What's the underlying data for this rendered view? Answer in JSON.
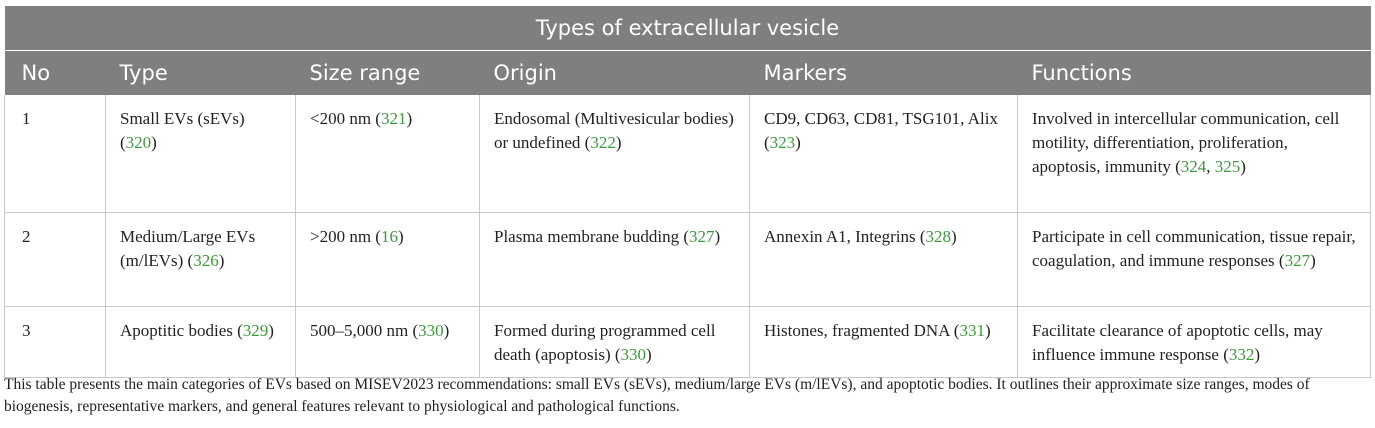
{
  "table": {
    "caption": "Types of extracellular vesicle",
    "headers": [
      "No",
      "Type",
      "Size range",
      "Origin",
      "Markers",
      "Functions"
    ],
    "rows": [
      {
        "no": "1",
        "type": {
          "text": "Small EVs (sEVs) (",
          "refs": [
            "320"
          ],
          "end": ")"
        },
        "size": {
          "text": "<200 nm (",
          "refs": [
            "321"
          ],
          "end": ")"
        },
        "origin": {
          "text": "Endosomal (Multivesicular bodies) or undefined (",
          "refs": [
            "322"
          ],
          "end": ")"
        },
        "markers": {
          "text": "CD9, CD63, CD81, TSG101, Alix (",
          "refs": [
            "323"
          ],
          "end": ")"
        },
        "functions": {
          "text": "Involved in intercellular communication, cell motility, differentiation, proliferation, apoptosis, immunity (",
          "refs": [
            "324",
            "325"
          ],
          "end": ")"
        }
      },
      {
        "no": "2",
        "type": {
          "text": "Medium/Large EVs (m/lEVs) (",
          "refs": [
            "326"
          ],
          "end": ")"
        },
        "size": {
          "text": ">200 nm (",
          "refs": [
            "16"
          ],
          "end": ")"
        },
        "origin": {
          "text": "Plasma membrane budding (",
          "refs": [
            "327"
          ],
          "end": ")"
        },
        "markers": {
          "text": "Annexin A1, Integrins (",
          "refs": [
            "328"
          ],
          "end": ")"
        },
        "functions": {
          "text": "Participate in cell communication, tissue repair, coagulation, and immune responses (",
          "refs": [
            "327"
          ],
          "end": ")"
        }
      },
      {
        "no": "3",
        "type": {
          "text": "Apoptitic bodies (",
          "refs": [
            "329"
          ],
          "end": ")"
        },
        "size": {
          "text": "500–5,000 nm (",
          "refs": [
            "330"
          ],
          "end": ")"
        },
        "origin": {
          "text": "Formed during programmed cell death (apoptosis) (",
          "refs": [
            "330"
          ],
          "end": ")"
        },
        "markers": {
          "text": "Histones, fragmented DNA (",
          "refs": [
            "331"
          ],
          "end": ")"
        },
        "functions": {
          "text": "Facilitate clearance of apoptotic cells, may influence immune response (",
          "refs": [
            "332"
          ],
          "end": ")"
        }
      }
    ]
  },
  "footnote": "This table presents the main categories of EVs based on MISEV2023 recommendations: small EVs (sEVs), medium/large EVs (m/lEVs), and apoptotic bodies. It outlines their approximate size ranges, modes of biogenesis, representative markers, and general features relevant to physiological and pathological functions.",
  "colors": {
    "header_bg": "#7f7f7f",
    "header_text": "#ffffff",
    "ref_link": "#3a9a3a",
    "grid": "#c9c9c9"
  }
}
